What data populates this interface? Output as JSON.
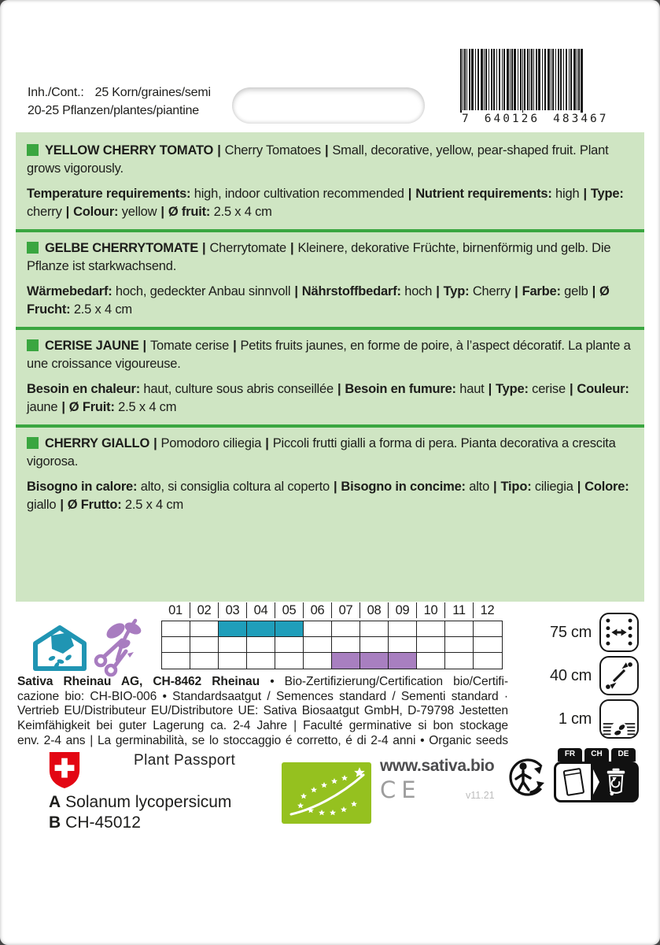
{
  "ui": {
    "sep": "|"
  },
  "colors": {
    "box_bg": "#cfe5c3",
    "green": "#3aa640",
    "blue": "#1f9eba",
    "purple": "#a87fc0",
    "eu_green": "#95c11f",
    "swiss_red": "#e30613"
  },
  "header": {
    "contents_label": "Inh./Cont.:",
    "contents_value": "25 Korn/graines/semi",
    "contents_line2": "20-25 Pflanzen/plantes/piantine",
    "barcode": {
      "prefix": "7",
      "group1": "640126",
      "group2": "483467"
    }
  },
  "sections": [
    {
      "lang": "en",
      "title": "YELLOW CHERRY TOMATO",
      "alt": "Cherry Tomatoes",
      "desc": "Small, decorative, yellow, pear-shaped fruit. Plant grows vigorously.",
      "specs": [
        {
          "key": "Temperature requirements:",
          "value": "high, indoor cultivation recommended"
        },
        {
          "key": "Nutrient requirements:",
          "value": "high"
        },
        {
          "key": "Type:",
          "value": "cherry"
        },
        {
          "key": "Colour:",
          "value": "yellow"
        },
        {
          "key": "Ø fruit:",
          "value": "2.5 x 4 cm"
        }
      ]
    },
    {
      "lang": "de",
      "title": "GELBE CHERRYTOMATE",
      "alt": "Cherrytomate",
      "desc": "Kleinere, dekorative Früchte, birnenförmig und gelb. Die Pflanze ist starkwachsend.",
      "specs": [
        {
          "key": "Wärmebedarf:",
          "value": "hoch, gedeckter Anbau sinnvoll"
        },
        {
          "key": "Nährstoffbedarf:",
          "value": "hoch"
        },
        {
          "key": "Typ:",
          "value": "Cherry"
        },
        {
          "key": "Farbe:",
          "value": "gelb"
        },
        {
          "key": "Ø Frucht:",
          "value": "2.5 x 4 cm"
        }
      ]
    },
    {
      "lang": "fr",
      "title": "CERISE JAUNE",
      "alt": "Tomate cerise",
      "desc": "Petits fruits jaunes, en forme de poire, à l’aspect décoratif. La plante a une croissance vigoureuse.",
      "specs": [
        {
          "key": "Besoin en chaleur:",
          "value": "haut, culture sous abris conseillée"
        },
        {
          "key": "Besoin en fumure:",
          "value": "haut"
        },
        {
          "key": "Type:",
          "value": "cerise"
        },
        {
          "key": "Couleur:",
          "value": "jaune"
        },
        {
          "key": "Ø Fruit:",
          "value": "2.5 x 4 cm"
        }
      ]
    },
    {
      "lang": "it",
      "title": "CHERRY GIALLO",
      "alt": "Pomodoro ciliegia",
      "desc": "Piccoli frutti gialli a forma di pera. Pianta decorativa a crescita vigorosa.",
      "specs": [
        {
          "key": "Bisogno in calore:",
          "value": "alto, si consiglia coltura al coperto"
        },
        {
          "key": "Bisogno in concime:",
          "value": "alto"
        },
        {
          "key": "Tipo:",
          "value": "ciliegia"
        },
        {
          "key": "Colore:",
          "value": "giallo"
        },
        {
          "key": "Ø Frutto:",
          "value": "2.5 x 4 cm"
        }
      ]
    }
  ],
  "calendar": {
    "months": [
      "01",
      "02",
      "03",
      "04",
      "05",
      "06",
      "07",
      "08",
      "09",
      "10",
      "11",
      "12"
    ],
    "rows": [
      {
        "label": "sowing-under-cover",
        "color": "#1f9eba",
        "active_months": [
          "03",
          "04",
          "05"
        ]
      },
      {
        "label": "",
        "color": "",
        "active_months": []
      },
      {
        "label": "harvest",
        "color": "#a87fc0",
        "active_months": [
          "07",
          "08",
          "09"
        ]
      }
    ]
  },
  "spacing": [
    {
      "label": "75 cm",
      "icon": "row-spacing-icon"
    },
    {
      "label": "40 cm",
      "icon": "plant-spacing-icon"
    },
    {
      "label": "1 cm",
      "icon": "sowing-depth-icon"
    }
  ],
  "publisher": {
    "bold": "Sativa Rheinau AG, CH-8462 Rheinau",
    "line1_rest": " • Bio-Zertifizierung/Certification bio/Certifi-",
    "line2": "cazione bio: CH-BIO-006 • Standardsaatgut / Semences standard / Sementi standard ·",
    "line3": "Vertrieb EU/Distributeur EU/Distributore UE: Sativa Biosaatgut GmbH, D-79798 Jestetten",
    "line4": "Keimfähigkeit bei guter Lagerung ca. 2-4 Jahre | Faculté germinative si bon stockage",
    "line5": "env. 2-4 ans | La germinabilità, se lo stoccaggio é corretto, é di 2-4 anni • Organic seeds"
  },
  "passport": {
    "title": "Plant Passport",
    "a_label": "A",
    "a_value": "Solanum lycopersicum",
    "b_label": "B",
    "b_value": "CH-45012"
  },
  "footer": {
    "website": "www.sativa.bio",
    "ce": "CE",
    "version": "v11.21"
  },
  "disposal": {
    "tabs": [
      "FR",
      "CH",
      "DE"
    ]
  }
}
